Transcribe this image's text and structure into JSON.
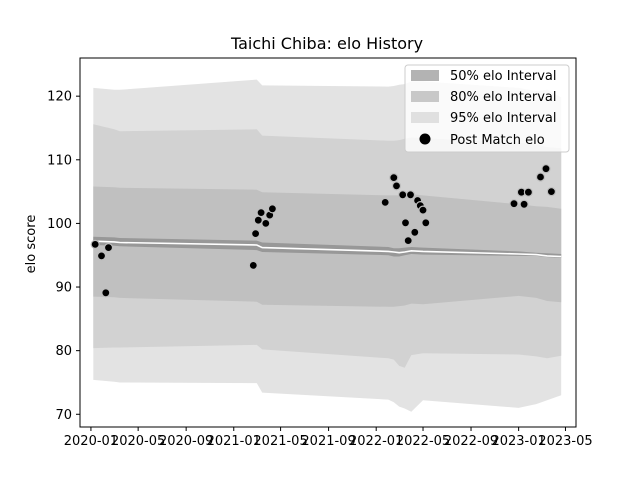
{
  "chart_data": {
    "type": "line",
    "title": "Taichi Chiba: elo History",
    "xlabel": "",
    "ylabel": "elo score",
    "xlim": [
      "2019-12-04",
      "2023-05-28"
    ],
    "ylim": [
      68,
      126
    ],
    "x_ticks": [
      "2020-01",
      "2020-05",
      "2020-09",
      "2021-01",
      "2021-05",
      "2021-09",
      "2022-01",
      "2022-05",
      "2022-09",
      "2023-01",
      "2023-05"
    ],
    "y_ticks": [
      70,
      80,
      90,
      100,
      110,
      120
    ],
    "grid": false,
    "legend_position": "top-right",
    "legend": [
      "50% elo Interval",
      "80% elo Interval",
      "95% elo Interval",
      "Post Match elo"
    ],
    "colors": {
      "band50": "#b3b3b3",
      "band80": "#c8c8c8",
      "band95": "#e0e0e0",
      "median_line": "#ffffff",
      "point_fill": "#000000",
      "point_edge": "#bdbdbd"
    },
    "intervals": {
      "x": [
        "2020-01-07",
        "2020-03-01",
        "2020-03-15",
        "2021-03-01",
        "2021-03-15",
        "2022-02-01",
        "2022-02-15",
        "2022-03-01",
        "2022-03-15",
        "2022-04-01",
        "2022-05-01",
        "2023-01-01",
        "2023-02-15",
        "2023-03-15",
        "2023-04-20"
      ],
      "median": [
        97.2,
        97.1,
        97.0,
        96.6,
        96.2,
        95.6,
        95.5,
        95.4,
        95.5,
        95.7,
        95.6,
        95.2,
        95.1,
        94.9,
        94.8
      ],
      "p50_low": [
        96.6,
        96.5,
        96.4,
        95.8,
        95.5,
        95.0,
        94.8,
        94.8,
        95.0,
        95.2,
        95.1,
        94.9,
        94.9,
        94.7,
        94.6
      ],
      "p50_high": [
        97.9,
        97.8,
        97.7,
        97.3,
        97.0,
        96.3,
        96.1,
        96.1,
        96.2,
        96.3,
        96.2,
        95.6,
        95.4,
        95.3,
        95.2
      ],
      "p80_low": [
        88.5,
        88.4,
        88.3,
        87.7,
        87.2,
        86.9,
        86.9,
        87.0,
        87.1,
        87.4,
        87.3,
        88.6,
        88.3,
        87.8,
        87.6
      ],
      "p80_high": [
        105.8,
        105.7,
        105.6,
        105.3,
        104.9,
        104.4,
        104.4,
        104.4,
        104.5,
        104.6,
        104.4,
        103.0,
        102.7,
        102.6,
        102.3
      ],
      "p95_low": [
        80.4,
        80.5,
        80.5,
        80.9,
        80.2,
        78.8,
        78.6,
        77.6,
        77.3,
        79.3,
        79.6,
        79.4,
        79.1,
        78.8,
        79.2
      ],
      "p95_high": [
        115.6,
        114.8,
        114.5,
        114.8,
        113.8,
        113.0,
        113.0,
        113.1,
        113.3,
        113.5,
        113.4,
        112.7,
        112.4,
        112.0,
        111.8
      ],
      "p99_low": [
        75.4,
        75.1,
        75.0,
        74.9,
        73.4,
        72.3,
        71.9,
        71.2,
        70.9,
        70.4,
        72.2,
        71.0,
        71.6,
        72.2,
        73.0
      ],
      "p99_high": [
        121.3,
        121.0,
        121.0,
        122.6,
        121.7,
        121.5,
        121.6,
        121.8,
        121.9,
        122.3,
        122.3,
        121.3,
        120.8,
        121.0,
        119.8
      ]
    },
    "post_match": [
      {
        "x": "2020-01-12",
        "y": 96.7
      },
      {
        "x": "2020-01-28",
        "y": 94.9
      },
      {
        "x": "2020-02-08",
        "y": 89.1
      },
      {
        "x": "2020-02-15",
        "y": 96.2
      },
      {
        "x": "2021-02-20",
        "y": 93.4
      },
      {
        "x": "2021-02-26",
        "y": 98.4
      },
      {
        "x": "2021-03-05",
        "y": 100.5
      },
      {
        "x": "2021-03-12",
        "y": 101.7
      },
      {
        "x": "2021-03-24",
        "y": 100.0
      },
      {
        "x": "2021-04-03",
        "y": 101.3
      },
      {
        "x": "2021-04-10",
        "y": 102.3
      },
      {
        "x": "2022-01-24",
        "y": 103.3
      },
      {
        "x": "2022-02-15",
        "y": 107.2
      },
      {
        "x": "2022-02-22",
        "y": 105.9
      },
      {
        "x": "2022-03-10",
        "y": 104.5
      },
      {
        "x": "2022-03-17",
        "y": 100.1
      },
      {
        "x": "2022-03-24",
        "y": 97.3
      },
      {
        "x": "2022-03-30",
        "y": 104.5
      },
      {
        "x": "2022-04-10",
        "y": 98.6
      },
      {
        "x": "2022-04-17",
        "y": 103.6
      },
      {
        "x": "2022-04-24",
        "y": 102.8
      },
      {
        "x": "2022-05-01",
        "y": 102.1
      },
      {
        "x": "2022-05-08",
        "y": 100.1
      },
      {
        "x": "2022-12-20",
        "y": 103.1
      },
      {
        "x": "2023-01-08",
        "y": 104.9
      },
      {
        "x": "2023-01-15",
        "y": 103.0
      },
      {
        "x": "2023-01-26",
        "y": 104.9
      },
      {
        "x": "2023-02-26",
        "y": 107.3
      },
      {
        "x": "2023-03-12",
        "y": 108.6
      },
      {
        "x": "2023-03-26",
        "y": 105.0
      }
    ]
  }
}
